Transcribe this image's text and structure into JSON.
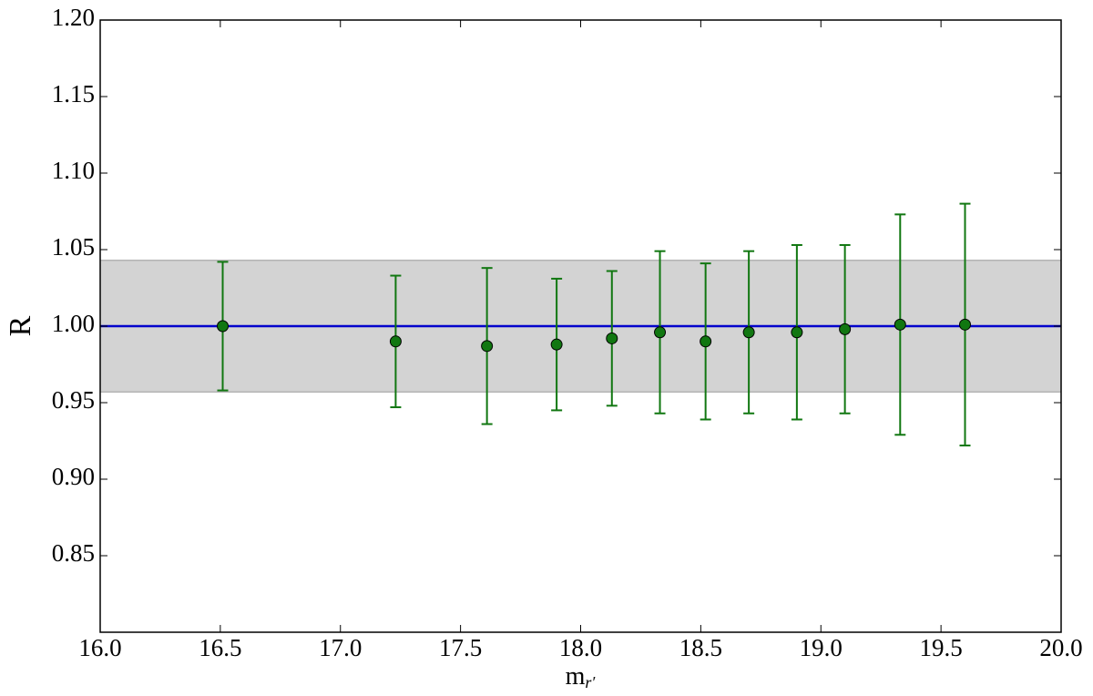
{
  "chart_data": {
    "type": "scatter",
    "xlabel": "m",
    "xlabel_sub": "r′",
    "ylabel": "R",
    "xlim": [
      16.0,
      20.0
    ],
    "ylim": [
      0.8,
      1.2
    ],
    "xticks": [
      {
        "value": 16.0,
        "label": "16.0"
      },
      16.5,
      {
        "value": 17.0,
        "label": "17.0"
      },
      17.5,
      {
        "value": 18.0,
        "label": "18.0"
      },
      18.5,
      {
        "value": 19.0,
        "label": "19.0"
      },
      19.5,
      {
        "value": 20.0,
        "label": "20.0"
      }
    ],
    "yticks": [
      0.85,
      {
        "value": 0.9,
        "label": "0.90"
      },
      0.95,
      {
        "value": 1.0,
        "label": "1.00"
      },
      1.05,
      {
        "value": 1.1,
        "label": "1.10"
      },
      1.15,
      {
        "value": 1.2,
        "label": "1.20"
      }
    ],
    "reference_line": 1.0,
    "reference_color": "#0000cc",
    "band": [
      0.957,
      1.043
    ],
    "band_color": "#d3d3d3",
    "series": [
      {
        "color": "#117711",
        "x": [
          16.51,
          17.23,
          17.61,
          17.9,
          18.13,
          18.33,
          18.52,
          18.7,
          18.9,
          19.1,
          19.33,
          19.6
        ],
        "values": [
          1.0,
          0.99,
          0.987,
          0.988,
          0.992,
          0.996,
          0.99,
          0.996,
          0.996,
          0.998,
          1.001,
          1.001
        ],
        "errors": [
          0.042,
          0.043,
          0.051,
          0.043,
          0.044,
          0.053,
          0.051,
          0.053,
          0.057,
          0.055,
          0.072,
          0.079
        ]
      }
    ]
  }
}
